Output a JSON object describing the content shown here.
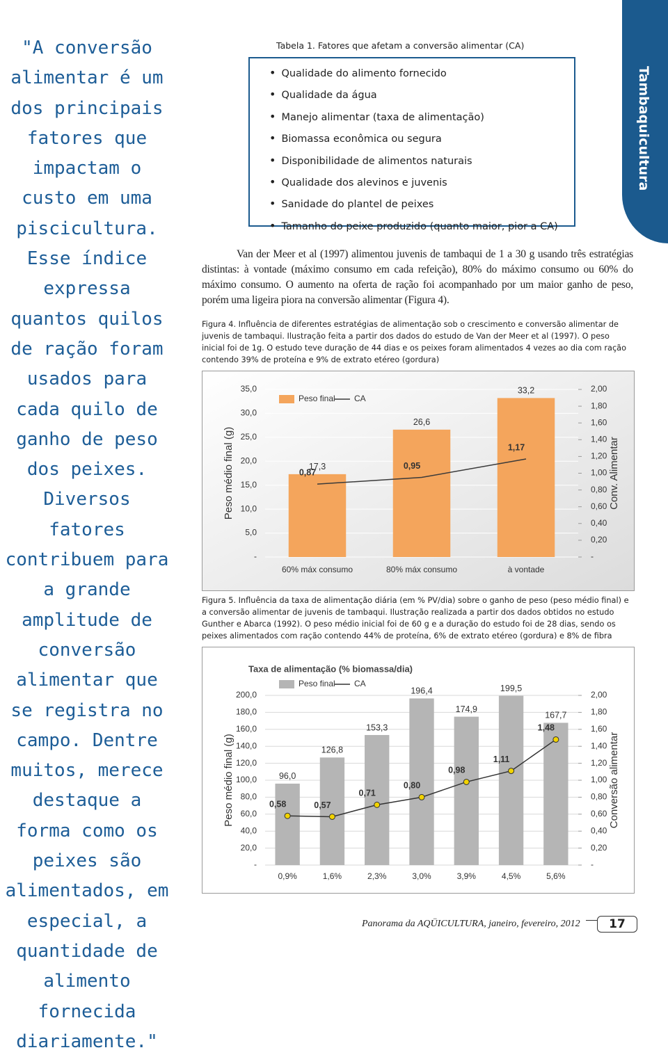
{
  "side_tab": "Tambaquicultura",
  "quote": "\"A conversão alimentar é um dos principais fatores que impactam o custo em uma piscicultura. Esse índice expressa quantos quilos de ração foram usados para cada quilo de ganho de peso dos peixes. Diversos fatores contribuem para a grande amplitude de conversão alimentar que se registra no campo. Dentre muitos, merece destaque a forma como os peixes são alimentados, em especial, a quantidade de alimento fornecida diariamente.\"",
  "table": {
    "caption": "Tabela 1. Fatores que afetam a conversão alimentar (CA)",
    "items": [
      "Qualidade do alimento fornecido",
      "Qualidade da água",
      "Manejo alimentar (taxa de alimentação)",
      "Biomassa econômica ou segura",
      "Disponibilidade de alimentos naturais",
      "Qualidade dos alevinos e juvenis",
      "Sanidade do plantel de peixes",
      "Tamanho do peixe produzido (quanto maior, pior a CA)"
    ]
  },
  "paragraph": "Van der Meer et al (1997) alimentou juvenis de tambaqui de 1 a 30 g usando três estratégias distintas: à vontade (máximo consumo em cada refeição), 80% do máximo consumo ou 60% do máximo consumo. O aumento na oferta de ração foi acompanhado por um maior ganho de peso, porém uma ligeira piora na conversão alimentar (Figura 4).",
  "figure_captions": [
    "Figura 4. Influência de diferentes estratégias de alimentação sob o crescimento e conversão alimentar de juvenis de tambaqui. Ilustração feita a partir dos dados do estudo de Van der Meer et al (1997). O peso inicial foi de 1g. O estudo teve duração de 44 dias e os peixes foram alimentados 4 vezes ao dia com ração contendo 39% de proteína e 9% de extrato etéreo (gordura)",
    "Figura 5. Influência da taxa de alimentação diária (em % PV/dia) sobre o ganho de peso (peso médio final) e a conversão alimentar de juvenis de tambaqui. Ilustração realizada a partir dos dados obtidos no estudo Gunther e Abarca (1992). O peso médio inicial foi de 60 g e a duração do estudo foi de 28 dias, sendo os peixes alimentados com ração contendo 44% de proteína, 6% de extrato etéreo (gordura) e 8% de fibra"
  ],
  "chart_data": [
    {
      "type": "combo",
      "ylabel": "Peso médio final (g)",
      "y2label": "Conv. Alimentar",
      "categories": [
        "60% máx consumo",
        "80% máx consumo",
        "à vontade"
      ],
      "series": [
        {
          "name": "Peso final",
          "type": "bar",
          "color": "#f4a55c",
          "values": [
            17.3,
            26.6,
            33.2
          ],
          "value_labels": [
            "17,3",
            "26,6",
            "33,2"
          ]
        },
        {
          "name": "CA",
          "type": "line",
          "axis": "y2",
          "color": "#3a3a3a",
          "values": [
            0.87,
            0.95,
            1.17
          ],
          "value_labels": [
            "0,87",
            "0,95",
            "1,17"
          ]
        }
      ],
      "ylim": [
        0,
        35
      ],
      "yticks": [
        {
          "value": 0,
          "label": "-"
        },
        {
          "value": 5,
          "label": "5,0"
        },
        {
          "value": 10,
          "label": "10,0"
        },
        {
          "value": 15,
          "label": "15,0"
        },
        {
          "value": 20,
          "label": "20,0"
        },
        {
          "value": 25,
          "label": "25,0"
        },
        {
          "value": 30,
          "label": "30,0"
        },
        {
          "value": 35,
          "label": "35,0"
        }
      ],
      "y2lim": [
        0,
        2
      ],
      "y2ticks": [
        {
          "value": 0,
          "label": "-"
        },
        {
          "value": 0.2,
          "label": "0,20"
        },
        {
          "value": 0.4,
          "label": "0,40"
        },
        {
          "value": 0.6,
          "label": "0,60"
        },
        {
          "value": 0.8,
          "label": "0,80"
        },
        {
          "value": 1,
          "label": "1,00"
        },
        {
          "value": 1.2,
          "label": "1,20"
        },
        {
          "value": 1.4,
          "label": "1,40"
        },
        {
          "value": 1.6,
          "label": "1,60"
        },
        {
          "value": 1.8,
          "label": "1,80"
        },
        {
          "value": 2,
          "label": "2,00"
        }
      ],
      "grid": true
    },
    {
      "type": "combo",
      "title": "Taxa de alimentação (% biomassa/dia)",
      "ylabel": "Peso médio final (g)",
      "y2label": "Conversão alimentar",
      "categories": [
        "0,9%",
        "1,6%",
        "2,3%",
        "3,0%",
        "3,9%",
        "4,5%",
        "5,6%"
      ],
      "series": [
        {
          "name": "Peso final",
          "type": "bar",
          "color": "#b5b5b5",
          "values": [
            96.0,
            126.8,
            153.3,
            196.4,
            174.9,
            199.5,
            167.7
          ],
          "value_labels": [
            "96,0",
            "126,8",
            "153,3",
            "196,4",
            "174,9",
            "199,5",
            "167,7"
          ]
        },
        {
          "name": "CA",
          "type": "line",
          "axis": "y2",
          "color": "#333333",
          "marker_color": "#f2d300",
          "values": [
            0.58,
            0.57,
            0.71,
            0.8,
            0.98,
            1.11,
            1.48
          ],
          "value_labels": [
            "0,58",
            "0,57",
            "0,71",
            "0,80",
            "0,98",
            "1,11",
            "1,48"
          ]
        }
      ],
      "ylim": [
        0,
        200
      ],
      "yticks": [
        {
          "value": 0,
          "label": "-"
        },
        {
          "value": 20,
          "label": "20,0"
        },
        {
          "value": 40,
          "label": "40,0"
        },
        {
          "value": 60,
          "label": "60,0"
        },
        {
          "value": 80,
          "label": "80,0"
        },
        {
          "value": 100,
          "label": "100,0"
        },
        {
          "value": 120,
          "label": "120,0"
        },
        {
          "value": 140,
          "label": "140,0"
        },
        {
          "value": 160,
          "label": "160,0"
        },
        {
          "value": 180,
          "label": "180,0"
        },
        {
          "value": 200,
          "label": "200,0"
        }
      ],
      "y2lim": [
        0,
        2
      ],
      "y2ticks": [
        {
          "value": 0,
          "label": "-"
        },
        {
          "value": 0.2,
          "label": "0,20"
        },
        {
          "value": 0.4,
          "label": "0,40"
        },
        {
          "value": 0.6,
          "label": "0,60"
        },
        {
          "value": 0.8,
          "label": "0,80"
        },
        {
          "value": 1,
          "label": "1,00"
        },
        {
          "value": 1.2,
          "label": "1,20"
        },
        {
          "value": 1.4,
          "label": "1,40"
        },
        {
          "value": 1.6,
          "label": "1,60"
        },
        {
          "value": 1.8,
          "label": "1,80"
        },
        {
          "value": 2,
          "label": "2,00"
        }
      ],
      "grid": true
    }
  ],
  "footer": {
    "publication": "Panorama da AQÜICULTURA, janeiro, fevereiro, 2012",
    "page": "17"
  }
}
